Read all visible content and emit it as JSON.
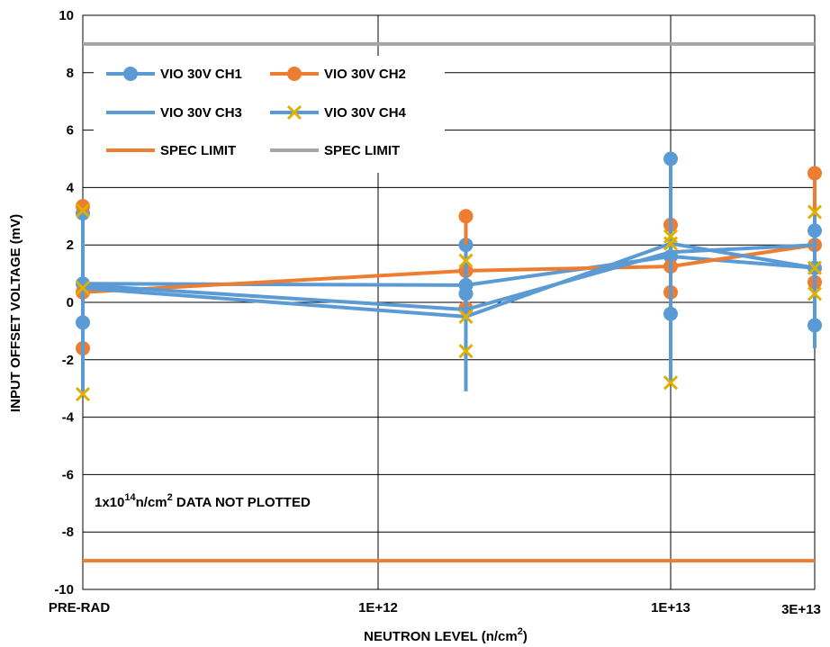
{
  "chart_data": {
    "type": "line",
    "title": "",
    "xlabel_main": "NEUTRON LEVEL (n/cm",
    "xlabel_sup": "2",
    "xlabel_end": ")",
    "ylabel": "INPUT OFFSET VOLTAGE (mV)",
    "ylim": [
      -10,
      10
    ],
    "yticks": [
      -10,
      -8,
      -6,
      -4,
      -2,
      0,
      2,
      4,
      6,
      8,
      10
    ],
    "ytick_labels": [
      "-10",
      "-8",
      "-6",
      "-4",
      "-2",
      "0",
      "2",
      "4",
      "6",
      "8",
      "10"
    ],
    "x_positions": [
      0,
      1,
      2,
      3
    ],
    "xtick_labels": [
      "PRE-RAD",
      "1E+12",
      "1E+13",
      "3E+13"
    ],
    "grid": true,
    "legend_position": "top-left",
    "note_prefix": "1x10",
    "note_sup": "14",
    "note_suffix": "n/cm",
    "note_sup2": "2",
    "note_end": " DATA NOT PLOTTED",
    "series": [
      {
        "name": "VIO 30V CH1",
        "color": "#5b9bd5",
        "marker": "circle",
        "points": [
          {
            "x": 0,
            "mean": 0.65,
            "min": -0.7,
            "max": 3.1
          },
          {
            "x": 1.3,
            "mean": 0.6,
            "min": 0.3,
            "max": 2.0
          },
          {
            "x": 2.0,
            "mean": 1.6,
            "min": -0.4,
            "max": 5.0
          },
          {
            "x": 3.0,
            "mean": 1.2,
            "min": -0.8,
            "max": 2.5
          }
        ]
      },
      {
        "name": "VIO 30V CH2",
        "color": "#ed7d31",
        "marker": "circle",
        "points": [
          {
            "x": 0,
            "mean": 0.35,
            "min": -1.6,
            "max": 3.35
          },
          {
            "x": 1.3,
            "mean": 1.1,
            "min": -0.2,
            "max": 3.0
          },
          {
            "x": 2.0,
            "mean": 1.25,
            "min": 0.35,
            "max": 2.7
          },
          {
            "x": 3.0,
            "mean": 2.0,
            "min": 0.7,
            "max": 4.5
          }
        ]
      },
      {
        "name": "VIO 30V CH3",
        "color": "#5b9bd5",
        "marker": "none",
        "points": [
          {
            "x": 0,
            "mean": 0.6,
            "min": -2.0,
            "max": 3.0
          },
          {
            "x": 1.3,
            "mean": -0.25,
            "min": -3.1,
            "max": 2.0
          },
          {
            "x": 2.0,
            "mean": 1.75,
            "min": -0.3,
            "max": 4.5
          },
          {
            "x": 3.0,
            "mean": 2.0,
            "min": -1.6,
            "max": 2.5
          }
        ]
      },
      {
        "name": "VIO 30V CH4",
        "color": "#5b9bd5",
        "marker": "x",
        "marker_color": "#e0b000",
        "points": [
          {
            "x": 0,
            "mean": 0.5,
            "min": -3.2,
            "max": 3.2
          },
          {
            "x": 1.3,
            "mean": -0.5,
            "min": -1.7,
            "max": 1.45
          },
          {
            "x": 2.0,
            "mean": 2.05,
            "min": -2.8,
            "max": 2.3
          },
          {
            "x": 3.0,
            "mean": 1.2,
            "min": 0.3,
            "max": 3.15
          }
        ]
      }
    ],
    "spec_limits": [
      {
        "name": "SPEC LIMIT",
        "color": "#ed7d31",
        "value": -9
      },
      {
        "name": "SPEC LIMIT",
        "color": "#a5a5a5",
        "value": 9
      }
    ]
  }
}
